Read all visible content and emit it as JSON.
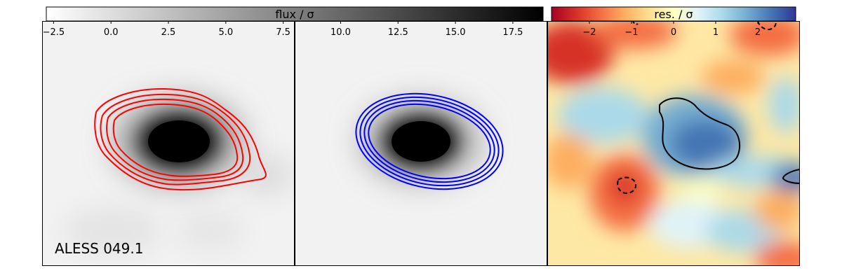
{
  "chart_data": [
    {
      "type": "heatmap",
      "panel": "data",
      "colormap": "Greys",
      "colorbar_label": "flux / σ",
      "colorbar_ticks": [
        "−2.5",
        "0.0",
        "2.5",
        "5.0",
        "7.5"
      ],
      "colorbar_range": [
        -3.0,
        8.0
      ],
      "contour_color": "#ff0000",
      "annotation": "ALESS 049.1"
    },
    {
      "type": "heatmap",
      "panel": "model",
      "colormap": "Greys",
      "colorbar_label": "flux / σ",
      "colorbar_ticks": [
        "10.0",
        "12.5",
        "15.0",
        "17.5"
      ],
      "colorbar_range": [
        8.0,
        19.0
      ],
      "contour_color": "#0000ff"
    },
    {
      "type": "heatmap",
      "panel": "residual",
      "colormap": "RdYlBu",
      "colorbar_label": "res. / σ",
      "colorbar_ticks": [
        "−2",
        "−1",
        "0",
        "1",
        "2"
      ],
      "colorbar_range": [
        -3.0,
        3.0
      ],
      "contour_color": "#000000"
    }
  ]
}
